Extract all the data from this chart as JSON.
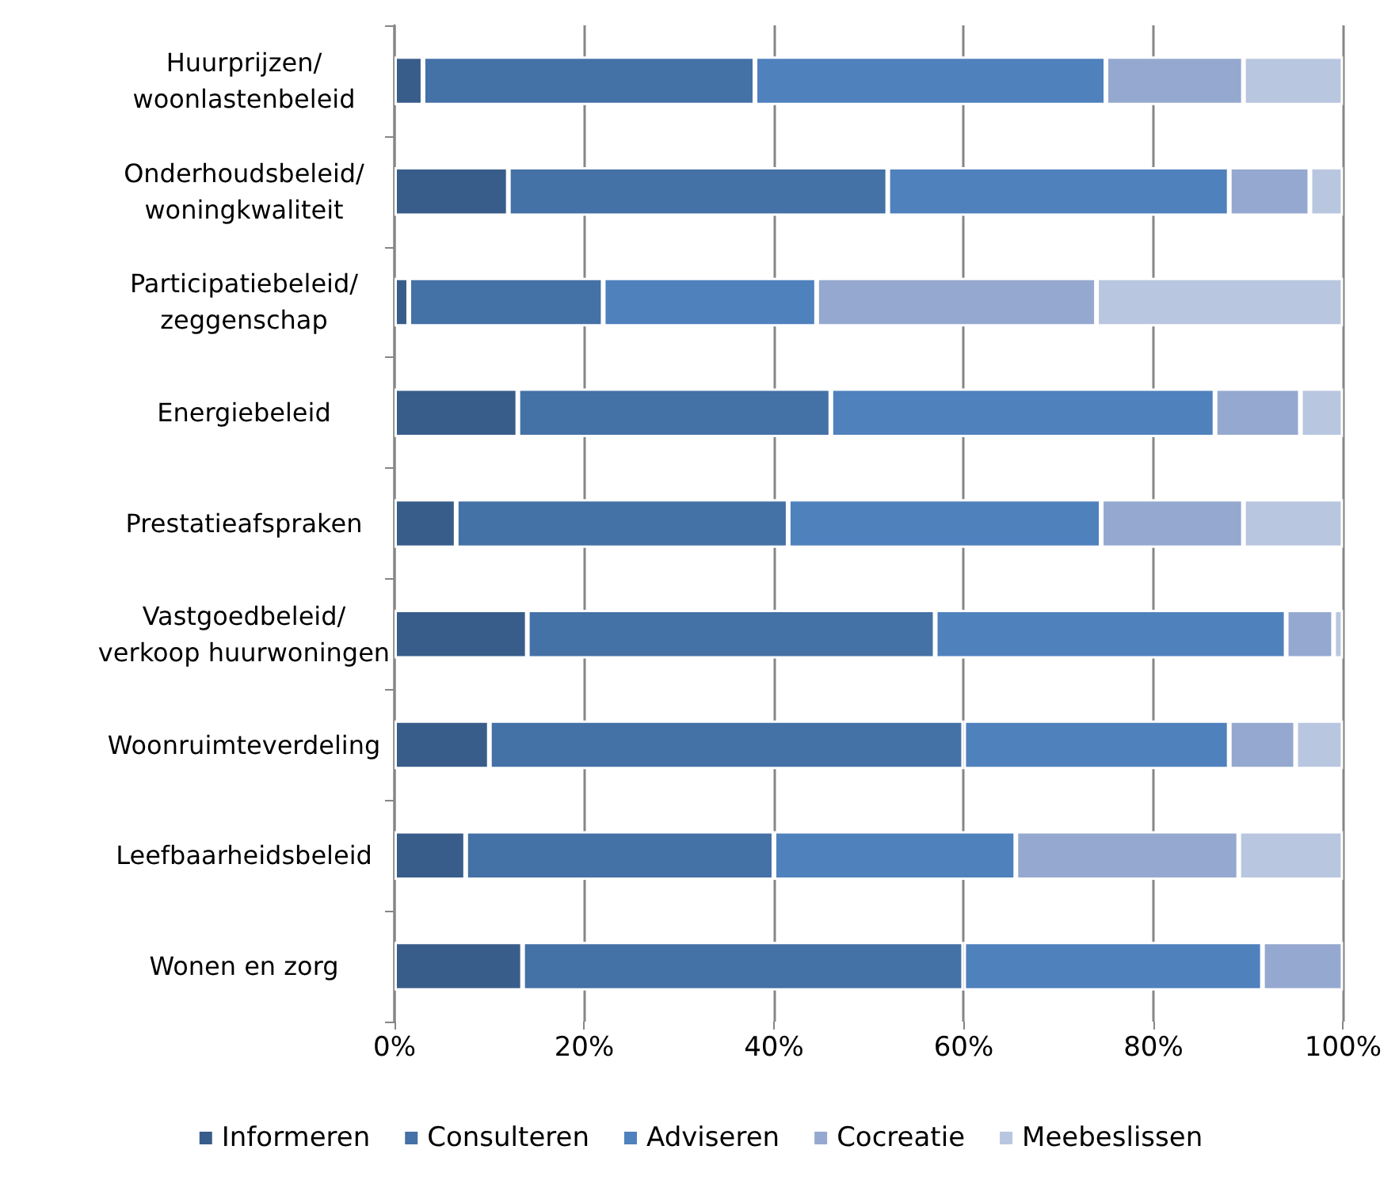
{
  "chart_data": {
    "type": "bar",
    "orientation": "horizontal",
    "stacked": true,
    "categories": [
      "Huurprijzen/\nwoonlastenbeleid",
      "Onderhoudsbeleid/\nwoningkwaliteit",
      "Participatiebeleid/\nzeggenschap",
      "Energiebeleid",
      "Prestatieafspraken",
      "Vastgoedbeleid/\nverkoop huurwoningen",
      "Woonruimteverdeling",
      "Leefbaarheidsbeleid",
      "Wonen en zorg"
    ],
    "series": [
      {
        "name": "Informeren",
        "color": "#385d8a",
        "values": [
          3,
          12,
          1.5,
          13,
          6.5,
          14,
          10,
          7.5,
          13.5
        ]
      },
      {
        "name": "Consulteren",
        "color": "#4471a6",
        "values": [
          35,
          40,
          20.5,
          33,
          35,
          43,
          50,
          32.5,
          46.5
        ]
      },
      {
        "name": "Adviseren",
        "color": "#4f81bd",
        "values": [
          37,
          36,
          22.5,
          40.5,
          33,
          37,
          28,
          25.5,
          31.5
        ]
      },
      {
        "name": "Cocreatie",
        "color": "#95a8cf",
        "values": [
          14.5,
          8.5,
          29.5,
          9,
          15,
          5,
          7,
          23.5,
          8.5
        ]
      },
      {
        "name": "Meebeslissen",
        "color": "#b9c6df",
        "values": [
          10.5,
          3.5,
          26,
          4.5,
          10.5,
          1,
          5,
          11,
          null
        ]
      }
    ],
    "xlim": [
      0,
      100
    ],
    "xticks": [
      {
        "value": 0,
        "label": "0%"
      },
      {
        "value": 20,
        "label": "20%"
      },
      {
        "value": 40,
        "label": "40%"
      },
      {
        "value": 60,
        "label": "60%"
      },
      {
        "value": 80,
        "label": "80%"
      },
      {
        "value": 100,
        "label": "100%"
      }
    ],
    "grid": "x",
    "legend": "bottom"
  }
}
